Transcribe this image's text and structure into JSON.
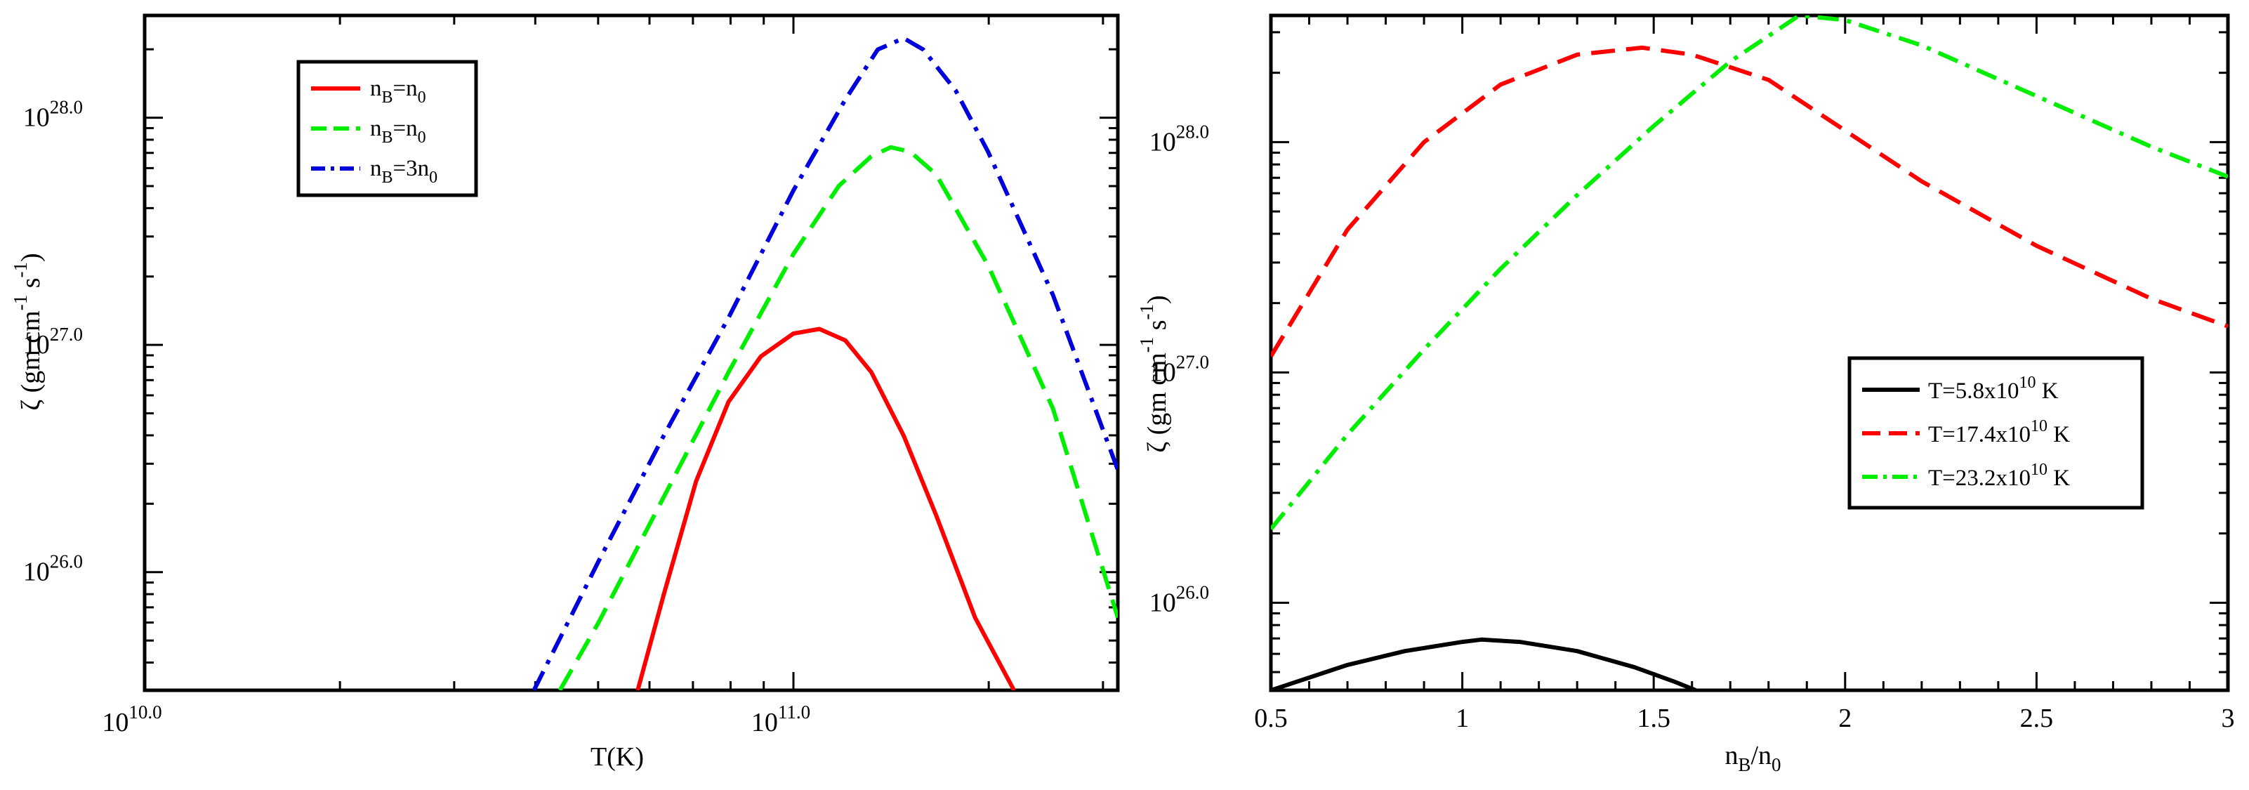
{
  "chart_data": [
    {
      "type": "line",
      "xscale": "log10",
      "yscale": "log10",
      "xlabel": "T(K)",
      "ylabel": "ζ (gm cm^-1 s^-1)",
      "xlim_log10": [
        10.0,
        11.5
      ],
      "ylim_log10": [
        25.48,
        28.45
      ],
      "xticks": [
        {
          "log10": 10.0,
          "label": "10",
          "exp": "10.0"
        },
        {
          "log10": 11.0,
          "label": "10",
          "exp": "11.0"
        }
      ],
      "yticks": [
        {
          "log10": 26.0,
          "label": "10",
          "exp": "26.0"
        },
        {
          "log10": 27.0,
          "label": "10",
          "exp": "27.0"
        },
        {
          "log10": 28.0,
          "label": "10",
          "exp": "28.0"
        }
      ],
      "legend_position": "top-left",
      "series": [
        {
          "name": "n_B=n_0",
          "legend_main": "n",
          "legend_sub1": "B",
          "legend_mid": "=n",
          "legend_sub2": "0",
          "color": "#ff0000",
          "style": "solid",
          "x_log10": [
            10.76,
            10.8,
            10.85,
            10.9,
            10.95,
            11.0,
            11.04,
            11.08,
            11.12,
            11.17,
            11.22,
            11.28,
            11.34
          ],
          "y_log10": [
            25.48,
            25.9,
            26.4,
            26.75,
            26.95,
            27.05,
            27.07,
            27.02,
            26.88,
            26.6,
            26.25,
            25.8,
            25.48
          ]
        },
        {
          "name": "n_B=n_0",
          "legend_main": "n",
          "legend_sub1": "B",
          "legend_mid": "=n",
          "legend_sub2": "0",
          "color": "#00ee00",
          "style": "dashed",
          "x_log10": [
            10.64,
            10.7,
            10.8,
            10.9,
            11.0,
            11.07,
            11.12,
            11.15,
            11.18,
            11.22,
            11.3,
            11.4,
            11.5
          ],
          "y_log10": [
            25.48,
            25.78,
            26.33,
            26.88,
            27.4,
            27.7,
            27.83,
            27.87,
            27.85,
            27.75,
            27.35,
            26.72,
            25.8
          ]
        },
        {
          "name": "n_B=3n_0",
          "legend_main": "n",
          "legend_sub1": "B",
          "legend_mid": "=3n",
          "legend_sub2": "0",
          "color": "#0000dd",
          "style": "dashdot",
          "x_log10": [
            10.6,
            10.7,
            10.8,
            10.9,
            11.0,
            11.08,
            11.13,
            11.17,
            11.2,
            11.25,
            11.3,
            11.4,
            11.5
          ],
          "y_log10": [
            25.48,
            26.05,
            26.6,
            27.12,
            27.68,
            28.08,
            28.3,
            28.35,
            28.3,
            28.12,
            27.85,
            27.22,
            26.45
          ]
        }
      ]
    },
    {
      "type": "line",
      "xscale": "linear",
      "yscale": "log10",
      "xlabel": "n_B/n_0",
      "xlabel_main": "n",
      "xlabel_sub1": "B",
      "xlabel_mid": "/n",
      "xlabel_sub2": "0",
      "ylabel": "ζ (gm cm^-1 s^-1)",
      "xlim": [
        0.5,
        3.0
      ],
      "ylim_log10": [
        25.62,
        28.55
      ],
      "xticks": [
        {
          "value": 0.5,
          "label": "0.5"
        },
        {
          "value": 1.0,
          "label": "1"
        },
        {
          "value": 1.5,
          "label": "1.5"
        },
        {
          "value": 2.0,
          "label": "2"
        },
        {
          "value": 2.5,
          "label": "2.5"
        },
        {
          "value": 3.0,
          "label": "3"
        }
      ],
      "yticks": [
        {
          "log10": 26.0,
          "label": "10",
          "exp": "26.0"
        },
        {
          "log10": 27.0,
          "label": "10",
          "exp": "27.0"
        },
        {
          "log10": 28.0,
          "label": "10",
          "exp": "28.0"
        }
      ],
      "legend_position": "center-right",
      "series": [
        {
          "name": "T=5.8x10^10 K",
          "legend_main": "T=5.8x10",
          "legend_sup": "10",
          "legend_tail": " K",
          "color": "#000000",
          "style": "solid",
          "x": [
            0.5,
            0.7,
            0.85,
            1.0,
            1.05,
            1.15,
            1.3,
            1.45,
            1.55,
            1.61
          ],
          "y_log10": [
            25.62,
            25.73,
            25.79,
            25.83,
            25.84,
            25.83,
            25.79,
            25.72,
            25.66,
            25.62
          ]
        },
        {
          "name": "T=17.4x10^10 K",
          "legend_main": "T=17.4x10",
          "legend_sup": "10",
          "legend_tail": " K",
          "color": "#ff0000",
          "style": "dashed",
          "x": [
            0.5,
            0.7,
            0.9,
            1.1,
            1.3,
            1.47,
            1.6,
            1.8,
            2.0,
            2.2,
            2.5,
            2.8,
            3.0
          ],
          "y_log10": [
            27.07,
            27.62,
            28.0,
            28.25,
            28.38,
            28.41,
            28.38,
            28.27,
            28.05,
            27.83,
            27.55,
            27.32,
            27.2
          ]
        },
        {
          "name": "T=23.2x10^10 K",
          "legend_main": "T=23.2x10",
          "legend_sup": "10",
          "legend_tail": " K",
          "color": "#00ee00",
          "style": "dashdot",
          "x": [
            0.5,
            0.7,
            0.9,
            1.1,
            1.3,
            1.5,
            1.7,
            1.88,
            2.0,
            2.2,
            2.5,
            2.8,
            3.0
          ],
          "y_log10": [
            26.32,
            26.73,
            27.1,
            27.45,
            27.77,
            28.07,
            28.35,
            28.55,
            28.53,
            28.42,
            28.2,
            27.98,
            27.85
          ]
        }
      ]
    }
  ]
}
